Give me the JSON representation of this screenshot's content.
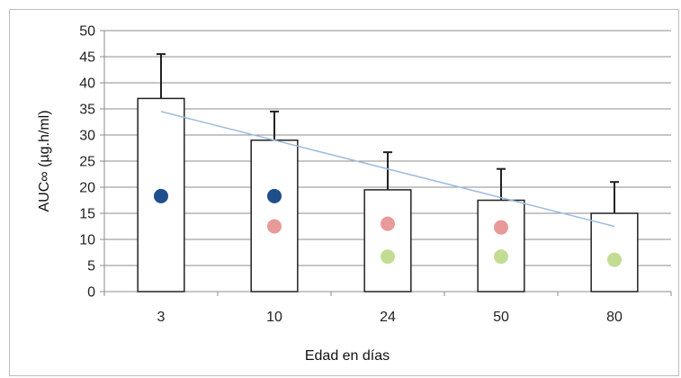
{
  "chart_data": {
    "type": "bar",
    "categories": [
      "3",
      "10",
      "24",
      "50",
      "80"
    ],
    "values": [
      37,
      29,
      19.5,
      17.5,
      15
    ],
    "error_bars": [
      8.5,
      5.5,
      7.2,
      6,
      6
    ],
    "trendline": {
      "type": "linear",
      "start": 34.5,
      "end": 12.5,
      "color": "#9dbbe0"
    },
    "points": [
      {
        "color": "#1f4e8c",
        "values": [
          18.3,
          18.3,
          null,
          null,
          null
        ]
      },
      {
        "color": "#e8999a",
        "values": [
          null,
          12.5,
          13,
          12.3,
          null
        ]
      },
      {
        "color": "#c2dd92",
        "values": [
          null,
          null,
          6.7,
          6.7,
          6.1
        ]
      }
    ],
    "xlabel": "Edad en días",
    "ylabel": "AUC∞ (µg.h/ml)",
    "ylim": [
      0,
      50
    ],
    "yticks": [
      0,
      5,
      10,
      15,
      20,
      25,
      30,
      35,
      40,
      45,
      50
    ],
    "grid": true,
    "legend": "none",
    "bar_fill": "#ffffff",
    "bar_stroke": "#222222",
    "grid_color": "#8c8c8c"
  }
}
